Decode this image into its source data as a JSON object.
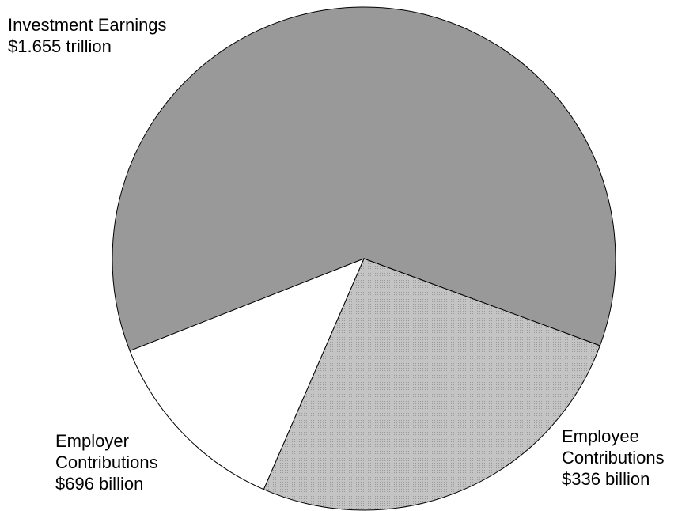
{
  "chart_data": {
    "type": "pie",
    "categories": [
      "Investment Earnings",
      "Employer Contributions",
      "Employee Contributions"
    ],
    "values": [
      1655,
      696,
      336
    ],
    "value_labels": [
      "$1.655 trillion",
      "$696 billion",
      "$336 billion"
    ],
    "colors": [
      "#999999",
      "#bdbdbd",
      "#ffffff"
    ]
  }
}
